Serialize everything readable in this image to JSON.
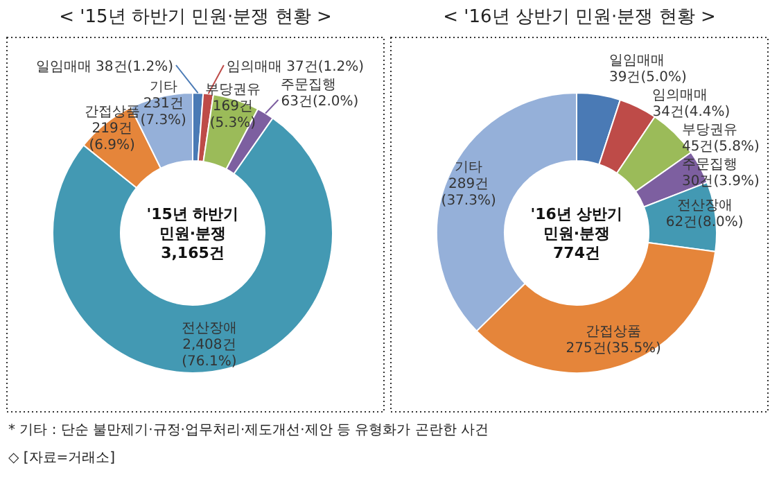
{
  "chart_data": [
    {
      "type": "donut",
      "title": "< '15년 하반기 민원·분쟁 현황 >",
      "categories": [
        "일임매매",
        "임의매매",
        "부당권유",
        "주문집행",
        "전산장애",
        "간접상품",
        "기타"
      ],
      "values": [
        38,
        37,
        169,
        63,
        2408,
        219,
        231
      ],
      "value_labels": [
        "38건(1.2%)",
        "37건(1.2%)",
        "169건\n(5.3%)",
        "63건(2.0%)",
        "2,408건\n(76.1%)",
        "219건\n(6.9%)",
        "231건\n(7.3%)"
      ],
      "colors": [
        "#4a7ab5",
        "#be4b48",
        "#9bbb59",
        "#7d5fa0",
        "#4399b3",
        "#e5853a",
        "#95b0d9"
      ],
      "annotations": [
        "'15년 하반기\n민원·분쟁\n3,165건",
        "* 기타 : 단순 불만제기·규정·업무처리·제도개선·제안 등 유형화가 곤란한 사건",
        "◇ [자료=거래소]"
      ]
    },
    {
      "type": "donut",
      "title": "< '16년 상반기 민원·분쟁 현황 >",
      "categories": [
        "일임매매",
        "임의매매",
        "부당권유",
        "주문집행",
        "전산장애",
        "간접상품",
        "기타"
      ],
      "values": [
        39,
        34,
        45,
        30,
        62,
        275,
        289
      ],
      "value_labels": [
        "39건(5.0%)",
        "34건(4.4%)",
        "45건(5.8%)",
        "30건(3.9%)",
        "62건(8.0%)",
        "275건(35.5%)",
        "289건\n(37.3%)"
      ],
      "colors": [
        "#4a7ab5",
        "#be4b48",
        "#9bbb59",
        "#7d5fa0",
        "#4399b3",
        "#e5853a",
        "#95b0d9"
      ],
      "annotations": [
        "'16년 상반기\n민원·분쟁\n774건"
      ]
    }
  ]
}
